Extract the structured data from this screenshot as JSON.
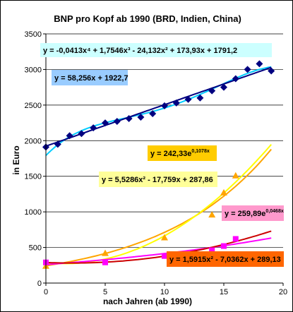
{
  "chart_data": {
    "type": "scatter",
    "title": "BNP pro Kopf ab 1990 (BRD, Indien, China)",
    "xlabel": "nach Jahren (ab 1990)",
    "ylabel": "in Euro",
    "xlim": [
      0,
      20
    ],
    "ylim": [
      0,
      3500
    ],
    "xticks": [
      "0",
      "5",
      "10",
      "15",
      "20"
    ],
    "yticks": [
      "0",
      "500",
      "1000",
      "1500",
      "2000",
      "2500",
      "3000",
      "3500"
    ],
    "grid": true,
    "series": [
      {
        "color": "#000080",
        "marker": "diamond",
        "x": [
          0,
          1,
          2,
          3,
          4,
          5,
          6,
          7,
          8,
          9,
          10,
          11,
          12,
          13,
          14,
          15,
          16,
          17,
          18,
          19
        ],
        "y": [
          1910,
          1950,
          2070,
          2100,
          2180,
          2250,
          2270,
          2310,
          2330,
          2380,
          2490,
          2530,
          2580,
          2600,
          2700,
          2750,
          2870,
          3000,
          3080,
          2980
        ]
      },
      {
        "color": "#FFA500",
        "marker": "triangle",
        "x": [
          0,
          5,
          10,
          14,
          15,
          16
        ],
        "y": [
          240,
          420,
          640,
          960,
          1270,
          1510
        ]
      },
      {
        "color": "#FF00FF",
        "marker": "square",
        "x": [
          0,
          5,
          10,
          14,
          15,
          16
        ],
        "y": [
          290,
          290,
          380,
          460,
          520,
          620
        ]
      }
    ],
    "trendlines": [
      {
        "equation": "y = -0,0413x⁴ + 1,7546x³ - 24,132x² + 173,93x + 1791,2",
        "type": "poly4",
        "coeffs": [
          -0.0413,
          1.7546,
          -24.132,
          173.93,
          1791.2
        ],
        "color": "#00CCFF",
        "box": "#CCFFFF"
      },
      {
        "equation": "y = 58,256x + 1922,7",
        "type": "linear",
        "coeffs": [
          58.256,
          1922.7
        ],
        "color": "#000080",
        "box": "#99CCFF"
      },
      {
        "equation": "y = 242,33e0,1078x",
        "type": "exp",
        "coeffs": [
          242.33,
          0.1078
        ],
        "color": "#FFA500",
        "box": "#FFCC00",
        "base": "y = 242,33e",
        "exponent": "0,1078x"
      },
      {
        "equation": "y = 5,5286x² - 17,759x + 287,86",
        "type": "poly2",
        "coeffs": [
          5.5286,
          -17.759,
          287.86
        ],
        "color": "#FFFF00",
        "box": "#FFFF99"
      },
      {
        "equation": "y = 259,89e0,0468x",
        "type": "exp",
        "coeffs": [
          259.89,
          0.0468
        ],
        "color": "#FF00FF",
        "box": "#FF99CC",
        "base": "y = 259,89e",
        "exponent": "0,0468x"
      },
      {
        "equation": "y = 1,5915x² - 7,0362x + 289,13",
        "type": "poly2",
        "coeffs": [
          1.5915,
          -7.0362,
          289.13
        ],
        "color": "#CC0000",
        "box": "#FF6600"
      }
    ]
  }
}
